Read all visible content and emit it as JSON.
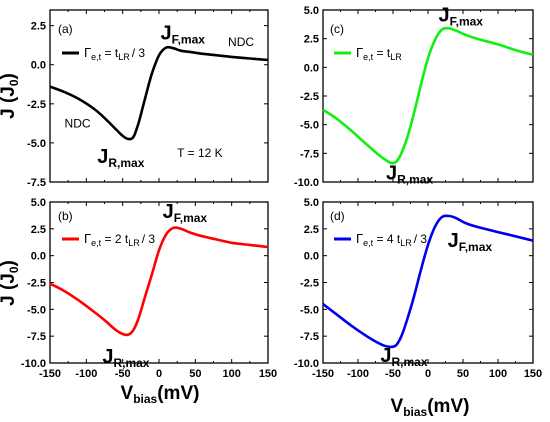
{
  "chart_data": [
    {
      "panel": "(a)",
      "type": "line",
      "xlim": [
        -150,
        150
      ],
      "ylim": [
        -7.5,
        3.5
      ],
      "yticks": [
        "-7.5",
        "-5.0",
        "-2.5",
        "0.0",
        "2.5"
      ],
      "xticks": [],
      "legend": {
        "prefix": "Γ",
        "prefix_sub": "e,t",
        "mid": " = t",
        "mid_sub": "LR",
        "suffix": "/ 3"
      },
      "color": "#000000",
      "series": [
        {
          "x": [
            -150,
            -130,
            -110,
            -90,
            -75,
            -60,
            -50,
            -42,
            -35,
            -28,
            -20,
            -10,
            0,
            10,
            20,
            30,
            45,
            60,
            80,
            100,
            125,
            150
          ],
          "y": [
            -1.4,
            -1.75,
            -2.2,
            -2.8,
            -3.4,
            -4.1,
            -4.55,
            -4.75,
            -4.6,
            -3.7,
            -2.3,
            -0.6,
            0.6,
            1.1,
            1.05,
            0.9,
            0.8,
            0.7,
            0.6,
            0.5,
            0.4,
            0.3
          ]
        }
      ],
      "annotations": {
        "jf": {
          "x": 2,
          "y": 1.6
        },
        "jr": {
          "x": -85,
          "y": -6.3
        },
        "ndc_right": {
          "text": "NDC",
          "x": 95,
          "y": 1.2
        },
        "ndc_left": {
          "text": "NDC",
          "x": -130,
          "y": -4.0
        },
        "temp": {
          "text": "T = 12 K",
          "x": 25,
          "y": -5.9
        }
      }
    },
    {
      "panel": "(b)",
      "type": "line",
      "xlim": [
        -150,
        150
      ],
      "ylim": [
        -10.0,
        5.0
      ],
      "yticks": [
        "-10.0",
        "-7.5",
        "-5.0",
        "-2.5",
        "0.0",
        "2.5",
        "5.0"
      ],
      "xticks": [
        "-150",
        "-100",
        "-50",
        "0",
        "50",
        "100",
        "150"
      ],
      "legend": {
        "prefix": "Γ",
        "prefix_sub": "e,t",
        "mid": " = 2 t",
        "mid_sub": "LR",
        "suffix": "/ 3"
      },
      "color": "#ff0000",
      "series": [
        {
          "x": [
            -150,
            -130,
            -110,
            -90,
            -75,
            -60,
            -50,
            -42,
            -35,
            -28,
            -20,
            -10,
            0,
            10,
            20,
            30,
            45,
            60,
            80,
            100,
            125,
            150
          ],
          "y": [
            -2.6,
            -3.3,
            -4.2,
            -5.2,
            -6.0,
            -6.9,
            -7.3,
            -7.35,
            -6.9,
            -5.8,
            -4.0,
            -1.8,
            0.5,
            2.0,
            2.6,
            2.5,
            2.1,
            1.8,
            1.5,
            1.2,
            1.0,
            0.8
          ]
        }
      ],
      "annotations": {
        "jf": {
          "x": 5,
          "y": 3.5
        },
        "jr": {
          "x": -78,
          "y": -10.0
        }
      }
    },
    {
      "panel": "(c)",
      "type": "line",
      "xlim": [
        -150,
        150
      ],
      "ylim": [
        -10.0,
        5.0
      ],
      "yticks": [
        "-10.0",
        "-7.5",
        "-5.0",
        "-2.5",
        "0.0",
        "2.5",
        "5.0"
      ],
      "xticks": [],
      "legend": {
        "prefix": "Γ",
        "prefix_sub": "e,t",
        "mid": " = t",
        "mid_sub": "LR",
        "suffix": ""
      },
      "color": "#11ee11",
      "series": [
        {
          "x": [
            -150,
            -130,
            -110,
            -90,
            -75,
            -60,
            -52,
            -45,
            -38,
            -30,
            -20,
            -10,
            0,
            10,
            20,
            30,
            40,
            55,
            75,
            100,
            125,
            150
          ],
          "y": [
            -3.7,
            -4.5,
            -5.5,
            -6.6,
            -7.4,
            -8.1,
            -8.35,
            -8.2,
            -7.5,
            -6.2,
            -4.0,
            -1.5,
            0.8,
            2.4,
            3.3,
            3.4,
            3.2,
            2.8,
            2.4,
            2.0,
            1.5,
            1.1
          ]
        }
      ],
      "annotations": {
        "jf": {
          "x": 15,
          "y": 4.0
        },
        "jr": {
          "x": -60,
          "y": -9.8
        }
      }
    },
    {
      "panel": "(d)",
      "type": "line",
      "xlim": [
        -150,
        150
      ],
      "ylim": [
        -10.0,
        5.0
      ],
      "yticks": [
        "-10.0",
        "-7.5",
        "-5.0",
        "-2.5",
        "0.0",
        "2.5",
        "5.0"
      ],
      "xticks": [
        "-150",
        "-100",
        "-50",
        "0",
        "50",
        "100",
        "150"
      ],
      "legend": {
        "prefix": "Γ",
        "prefix_sub": "e,t",
        "mid": " = 4 t",
        "mid_sub": "LR",
        "suffix": "/ 3"
      },
      "color": "#0000ee",
      "series": [
        {
          "x": [
            -150,
            -130,
            -110,
            -90,
            -75,
            -62,
            -52,
            -45,
            -38,
            -30,
            -20,
            -10,
            0,
            10,
            20,
            30,
            40,
            55,
            75,
            100,
            125,
            150
          ],
          "y": [
            -4.5,
            -5.5,
            -6.5,
            -7.4,
            -8.0,
            -8.4,
            -8.5,
            -8.3,
            -7.5,
            -6.0,
            -3.8,
            -1.3,
            1.0,
            2.7,
            3.6,
            3.7,
            3.5,
            3.0,
            2.6,
            2.2,
            1.8,
            1.4
          ]
        }
      ],
      "annotations": {
        "jf": {
          "x": 28,
          "y": 0.8
        },
        "jr": {
          "x": -68,
          "y": -9.9
        }
      }
    }
  ],
  "labels": {
    "ylabel": "J (J",
    "ylabel_sub": "0",
    "ylabel_end": ")",
    "xlabel": "V",
    "xlabel_sub": "bias",
    "xlabel_end": "(mV)",
    "jf_main": "J",
    "jf_sub": "F,max",
    "jr_main": "J",
    "jr_sub": "R,max"
  }
}
